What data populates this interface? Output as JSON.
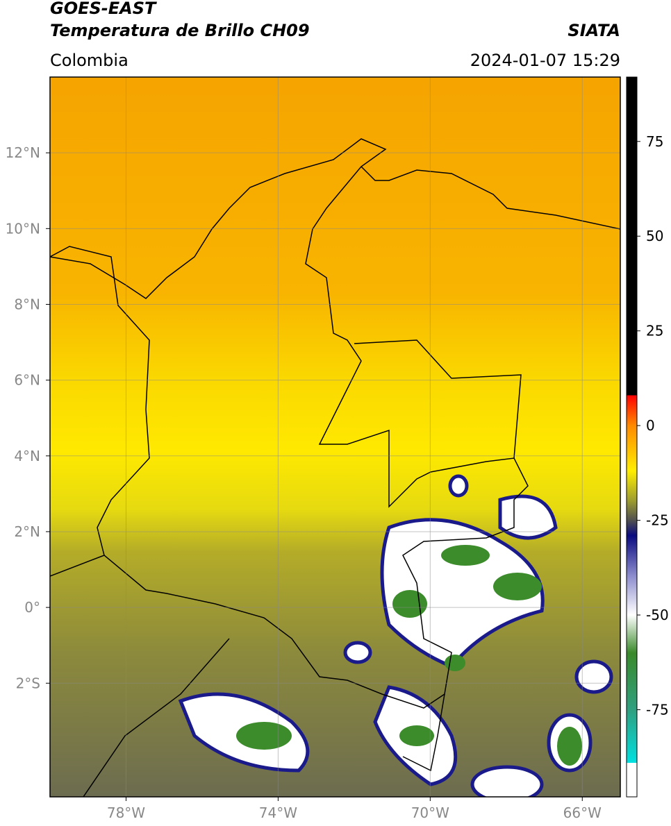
{
  "header": {
    "title": "GOES-EAST",
    "subtitle": "Temperatura de Brillo CH09",
    "source": "SIATA",
    "region": "Colombia",
    "timestamp": "2024-01-07 15:29"
  },
  "map": {
    "xlim": [
      -80,
      -65
    ],
    "ylim": [
      -5,
      14
    ],
    "xticks": [
      {
        "value": -78,
        "label": "78°W"
      },
      {
        "value": -74,
        "label": "74°W"
      },
      {
        "value": -70,
        "label": "70°W"
      },
      {
        "value": -66,
        "label": "66°W"
      }
    ],
    "yticks": [
      {
        "value": 12,
        "label": "12°N"
      },
      {
        "value": 10,
        "label": "10°N"
      },
      {
        "value": 8,
        "label": "8°N"
      },
      {
        "value": 6,
        "label": "6°N"
      },
      {
        "value": 4,
        "label": "4°N"
      },
      {
        "value": 2,
        "label": "2°N"
      },
      {
        "value": 0,
        "label": "0°"
      },
      {
        "value": -2,
        "label": "2°S"
      }
    ],
    "grid": true
  },
  "colorbar": {
    "lim": [
      -98,
      92
    ],
    "ticks": [
      75,
      50,
      25,
      0,
      -25,
      -50,
      -75
    ],
    "stops": [
      {
        "value": 92,
        "color": "#000000"
      },
      {
        "value": 8,
        "color": "#000000"
      },
      {
        "value": 8,
        "color": "#ff0000"
      },
      {
        "value": 0,
        "color": "#ff8a00"
      },
      {
        "value": -12,
        "color": "#ffee00"
      },
      {
        "value": -20,
        "color": "#9a9a30"
      },
      {
        "value": -25,
        "color": "#505050"
      },
      {
        "value": -29,
        "color": "#0a0a80"
      },
      {
        "value": -40,
        "color": "#9090d0"
      },
      {
        "value": -50,
        "color": "#ffffff"
      },
      {
        "value": -60,
        "color": "#3a8a2a"
      },
      {
        "value": -75,
        "color": "#30a080"
      },
      {
        "value": -89,
        "color": "#00e0e0"
      },
      {
        "value": -89,
        "color": "#ffffff"
      },
      {
        "value": -98,
        "color": "#ffffff"
      }
    ]
  }
}
